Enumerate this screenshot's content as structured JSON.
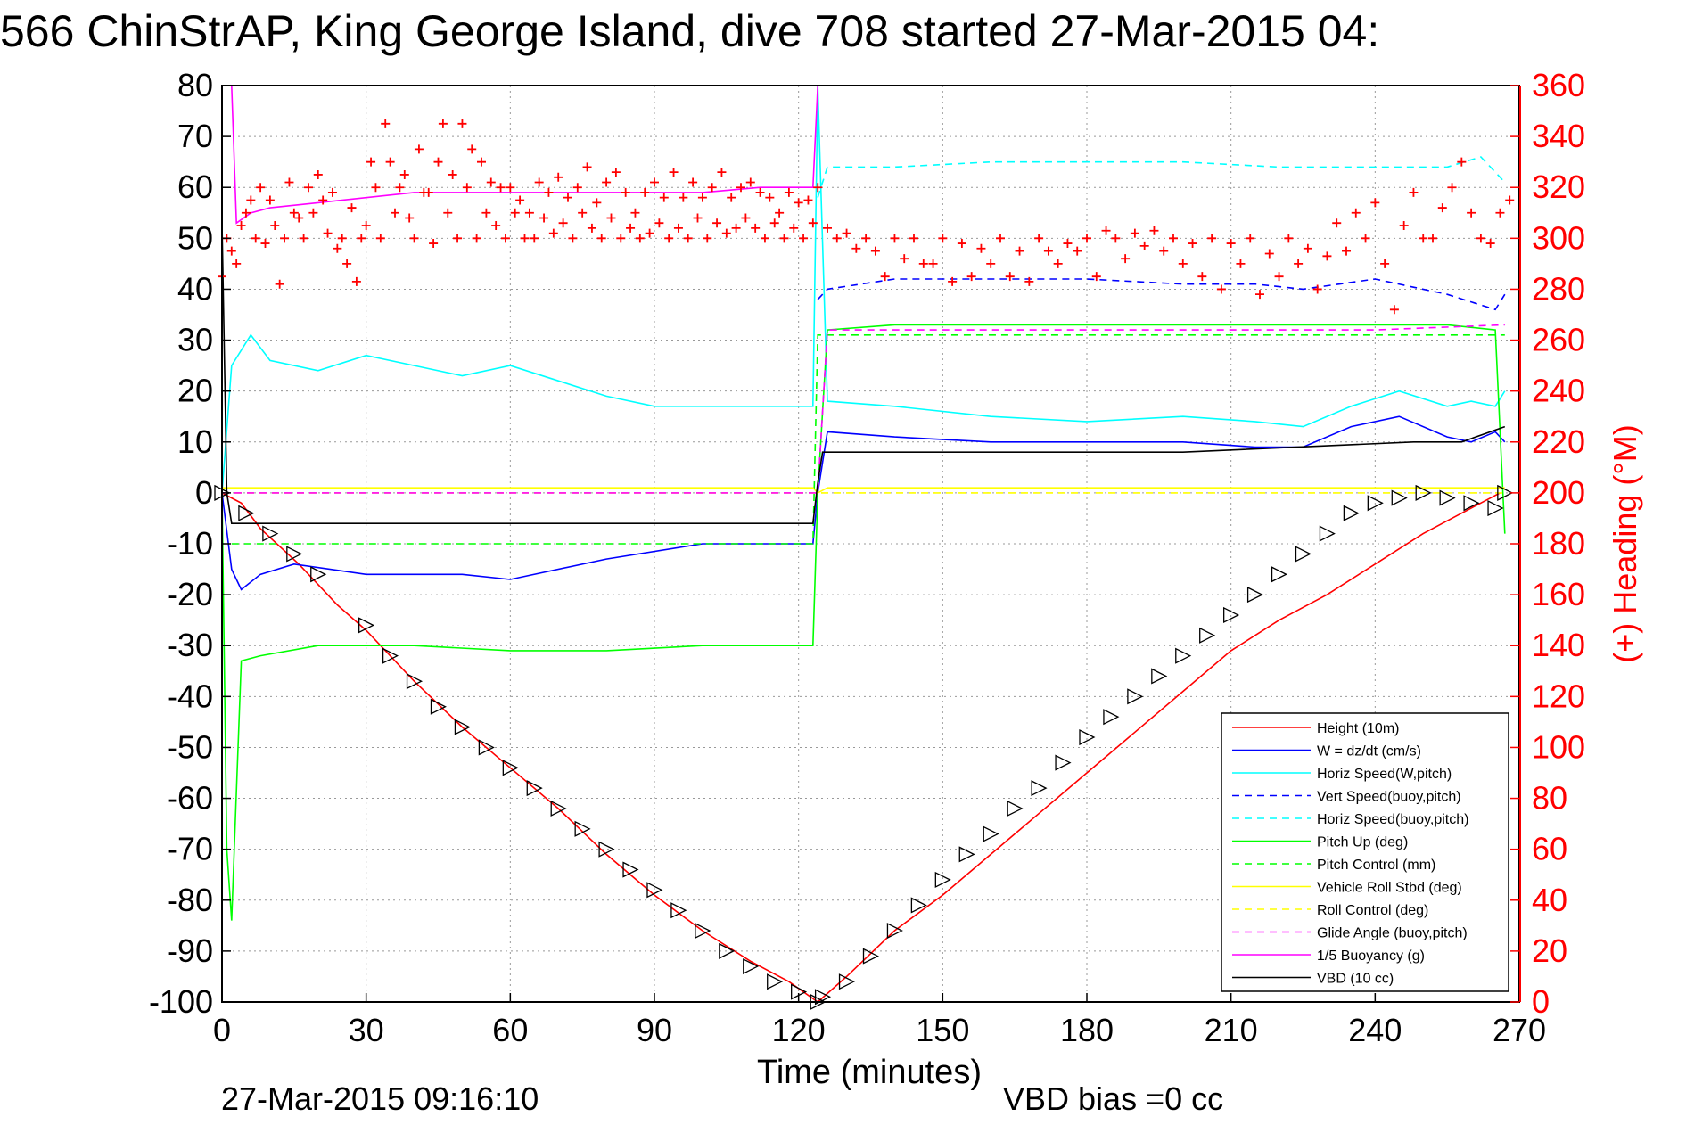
{
  "chart_data": {
    "type": "line",
    "title": "566 ChinStrAP, King George Island, dive 708 started 27-Mar-2015 04:",
    "xlabel": "Time (minutes)",
    "ylabel_right": "(+) Heading (°M)",
    "xlim": [
      0,
      270
    ],
    "ylim": [
      -100,
      80
    ],
    "ylim_right": [
      0,
      360
    ],
    "xticks": [
      "0",
      "30",
      "60",
      "90",
      "120",
      "150",
      "180",
      "210",
      "240",
      "270"
    ],
    "yticks": [
      "80",
      "70",
      "60",
      "50",
      "40",
      "30",
      "20",
      "10",
      "0",
      "-10",
      "-20",
      "-30",
      "-40",
      "-50",
      "-60",
      "-70",
      "-80",
      "-90",
      "-100"
    ],
    "yticks_right": [
      "360",
      "340",
      "320",
      "300",
      "280",
      "260",
      "240",
      "220",
      "200",
      "180",
      "160",
      "140",
      "120",
      "100",
      "80",
      "60",
      "40",
      "20",
      "0"
    ],
    "grid": true,
    "legend_position": "bottom-right",
    "footer_left": "27-Mar-2015 09:16:10",
    "footer_right": "VBD bias =0 cc",
    "colors": {
      "red": "#ff0000",
      "blue": "#0000ff",
      "cyan": "#00ffff",
      "green": "#00ff00",
      "yellow": "#ffff00",
      "magenta": "#ff00ff",
      "black": "#000000"
    },
    "series": [
      {
        "name": "Height (10m)",
        "color": "#ff0000",
        "style": "solid",
        "x": [
          0,
          4,
          8,
          16,
          24,
          30,
          40,
          50,
          60,
          70,
          80,
          90,
          100,
          110,
          118,
          124,
          130,
          140,
          150,
          160,
          170,
          180,
          190,
          200,
          210,
          220,
          230,
          240,
          250,
          258,
          266
        ],
        "y": [
          0,
          -2,
          -7,
          -14,
          -22,
          -27,
          -37,
          -46,
          -54,
          -62,
          -71,
          -79,
          -86,
          -92,
          -96,
          -100,
          -95,
          -86,
          -79,
          -71,
          -63,
          -55,
          -47,
          -39,
          -31,
          -25,
          -20,
          -14,
          -8,
          -4,
          0
        ]
      },
      {
        "name": "W = dz/dt (cm/s)",
        "color": "#0000ff",
        "style": "solid",
        "x": [
          0,
          2,
          4,
          8,
          15,
          30,
          50,
          60,
          80,
          100,
          123,
          124,
          126,
          140,
          160,
          180,
          200,
          215,
          225,
          235,
          245,
          255,
          260,
          265,
          267
        ],
        "y": [
          0,
          -15,
          -19,
          -16,
          -14,
          -16,
          -16,
          -17,
          -13,
          -10,
          -10,
          0,
          12,
          11,
          10,
          10,
          10,
          9,
          9,
          13,
          15,
          11,
          10,
          12,
          10
        ]
      },
      {
        "name": "Horiz Speed(W,pitch)",
        "color": "#00ffff",
        "style": "solid",
        "x": [
          0,
          2,
          6,
          10,
          20,
          30,
          40,
          50,
          60,
          70,
          80,
          90,
          100,
          110,
          123,
          124,
          126,
          140,
          160,
          180,
          200,
          215,
          225,
          235,
          245,
          255,
          260,
          265,
          267
        ],
        "y": [
          0,
          25,
          31,
          26,
          24,
          27,
          25,
          23,
          25,
          22,
          19,
          17,
          17,
          17,
          17,
          80,
          18,
          17,
          15,
          14,
          15,
          14,
          13,
          17,
          20,
          17,
          18,
          17,
          20
        ]
      },
      {
        "name": "Vert Speed(buoy,pitch)",
        "color": "#0000ff",
        "style": "dashed",
        "x": [
          124,
          126,
          140,
          160,
          180,
          200,
          215,
          225,
          240,
          255,
          265,
          267
        ],
        "y": [
          38,
          40,
          42,
          42,
          42,
          41,
          41,
          40,
          42,
          39,
          36,
          39
        ]
      },
      {
        "name": "Horiz Speed(buoy,pitch)",
        "color": "#00ffff",
        "style": "dashed",
        "x": [
          124,
          126,
          140,
          160,
          180,
          200,
          220,
          240,
          255,
          262,
          267
        ],
        "y": [
          58,
          64,
          64,
          65,
          65,
          65,
          64,
          64,
          64,
          66,
          61
        ]
      },
      {
        "name": "Pitch Up (deg)",
        "color": "#00ff00",
        "style": "solid",
        "x": [
          0,
          1,
          2,
          4,
          8,
          20,
          40,
          60,
          80,
          100,
          123,
          124,
          126,
          140,
          160,
          180,
          200,
          220,
          240,
          255,
          265,
          267
        ],
        "y": [
          0,
          -70,
          -84,
          -33,
          -32,
          -30,
          -30,
          -31,
          -31,
          -30,
          -30,
          0,
          32,
          33,
          33,
          33,
          33,
          33,
          33,
          33,
          32,
          -8
        ]
      },
      {
        "name": "Pitch Control (mm)",
        "color": "#00ff00",
        "style": "dashed",
        "x": [
          2,
          10,
          40,
          80,
          123,
          124,
          126,
          160,
          200,
          240,
          267
        ],
        "y": [
          -10,
          -10,
          -10,
          -10,
          -10,
          31,
          31,
          31,
          31,
          31,
          31
        ]
      },
      {
        "name": "Vehicle Roll Stbd (deg)",
        "color": "#ffff00",
        "style": "solid",
        "x": [
          0,
          10,
          30,
          60,
          90,
          123,
          124,
          126,
          150,
          180,
          210,
          240,
          255,
          267
        ],
        "y": [
          1,
          1,
          1,
          1,
          1,
          1,
          0,
          1,
          1,
          1,
          1,
          1,
          1,
          1
        ]
      },
      {
        "name": "Roll Control (deg)",
        "color": "#ffff00",
        "style": "dashed",
        "x": [
          0,
          10,
          30,
          60,
          90,
          123,
          126,
          150,
          180,
          210,
          240,
          255,
          267
        ],
        "y": [
          0,
          0,
          0,
          0,
          0,
          0,
          0,
          0,
          0,
          0,
          0,
          0,
          0
        ]
      },
      {
        "name": "Glide Angle (buoy,pitch)",
        "color": "#ff00ff",
        "style": "dashed",
        "x": [
          0,
          30,
          60,
          90,
          123,
          124,
          126,
          160,
          200,
          240,
          267
        ],
        "y": [
          0,
          0,
          0,
          0,
          0,
          0,
          32,
          32,
          32,
          32,
          33
        ]
      },
      {
        "name": "1/5 Buoyancy (g)",
        "color": "#ff00ff",
        "style": "solid",
        "x": [
          2,
          3,
          6,
          10,
          20,
          40,
          60,
          80,
          100,
          112,
          123,
          124
        ],
        "y": [
          80,
          53,
          55,
          56,
          57,
          59,
          59,
          59,
          59,
          60,
          60,
          80
        ]
      },
      {
        "name": "VBD (10 cc)",
        "color": "#000000",
        "style": "solid",
        "x": [
          0,
          1,
          2,
          3,
          60,
          123,
          124,
          125,
          126,
          200,
          248,
          258,
          267
        ],
        "y": [
          53,
          0,
          -6,
          -6,
          -6,
          -6,
          2,
          8,
          8,
          8,
          10,
          10,
          13
        ]
      }
    ],
    "heading_series": {
      "name": "(+) Heading",
      "color": "#ff0000",
      "marker": "+",
      "axis": "right",
      "x": [
        0,
        1,
        2,
        3,
        4,
        5,
        6,
        7,
        8,
        9,
        10,
        11,
        12,
        13,
        14,
        15,
        16,
        17,
        18,
        19,
        20,
        21,
        22,
        23,
        24,
        25,
        26,
        27,
        28,
        29,
        30,
        31,
        32,
        33,
        34,
        35,
        36,
        37,
        38,
        39,
        40,
        41,
        42,
        43,
        44,
        45,
        46,
        47,
        48,
        49,
        50,
        51,
        52,
        53,
        54,
        55,
        56,
        57,
        58,
        59,
        60,
        61,
        62,
        63,
        64,
        65,
        66,
        67,
        68,
        69,
        70,
        71,
        72,
        73,
        74,
        75,
        76,
        77,
        78,
        79,
        80,
        81,
        82,
        83,
        84,
        85,
        86,
        87,
        88,
        89,
        90,
        91,
        92,
        93,
        94,
        95,
        96,
        97,
        98,
        99,
        100,
        101,
        102,
        103,
        104,
        105,
        106,
        107,
        108,
        109,
        110,
        111,
        112,
        113,
        114,
        115,
        116,
        117,
        118,
        119,
        120,
        121,
        122,
        123,
        124,
        126,
        128,
        130,
        132,
        134,
        136,
        138,
        140,
        142,
        144,
        146,
        148,
        150,
        152,
        154,
        156,
        158,
        160,
        162,
        164,
        166,
        168,
        170,
        172,
        174,
        176,
        178,
        180,
        182,
        184,
        186,
        188,
        190,
        192,
        194,
        196,
        198,
        200,
        202,
        204,
        206,
        208,
        210,
        212,
        214,
        216,
        218,
        220,
        222,
        224,
        226,
        228,
        230,
        232,
        234,
        236,
        238,
        240,
        242,
        244,
        246,
        248,
        250,
        252,
        254,
        256,
        258,
        260,
        262,
        264,
        266,
        268
      ],
      "y": [
        285,
        300,
        295,
        290,
        305,
        310,
        315,
        300,
        320,
        298,
        315,
        305,
        282,
        300,
        322,
        310,
        308,
        300,
        320,
        310,
        325,
        315,
        302,
        318,
        296,
        300,
        290,
        312,
        283,
        300,
        305,
        330,
        320,
        300,
        345,
        330,
        310,
        320,
        325,
        308,
        300,
        335,
        318,
        318,
        298,
        330,
        345,
        310,
        325,
        300,
        345,
        320,
        335,
        300,
        330,
        310,
        322,
        305,
        320,
        300,
        320,
        310,
        315,
        300,
        310,
        300,
        322,
        308,
        318,
        302,
        324,
        306,
        316,
        300,
        320,
        310,
        328,
        304,
        314,
        300,
        322,
        308,
        326,
        300,
        318,
        304,
        310,
        300,
        318,
        302,
        322,
        306,
        316,
        300,
        326,
        304,
        316,
        300,
        322,
        308,
        316,
        300,
        320,
        306,
        326,
        302,
        316,
        304,
        320,
        308,
        322,
        304,
        318,
        300,
        316,
        306,
        310,
        300,
        318,
        304,
        314,
        300,
        315,
        306,
        320,
        304,
        300,
        302,
        296,
        300,
        295,
        285,
        300,
        292,
        300,
        290,
        290,
        300,
        283,
        298,
        285,
        296,
        290,
        300,
        285,
        295,
        283,
        300,
        295,
        290,
        298,
        295,
        300,
        285,
        303,
        300,
        292,
        302,
        297,
        303,
        295,
        300,
        290,
        298,
        285,
        300,
        280,
        298,
        290,
        300,
        278,
        294,
        285,
        300,
        290,
        296,
        280,
        293,
        306,
        295,
        310,
        300,
        314,
        290,
        272,
        305,
        318,
        300,
        300,
        312,
        320,
        330,
        310,
        300,
        298,
        310,
        315
      ]
    },
    "markers_triangles": {
      "color": "#000000",
      "x": [
        0,
        5,
        10,
        15,
        20,
        30,
        35,
        40,
        45,
        50,
        55,
        60,
        65,
        70,
        75,
        80,
        85,
        90,
        95,
        100,
        105,
        110,
        115,
        120,
        124,
        125,
        130,
        135,
        140,
        145,
        150,
        155,
        160,
        165,
        170,
        175,
        180,
        185,
        190,
        195,
        200,
        205,
        210,
        215,
        220,
        225,
        230,
        235,
        240,
        245,
        250,
        255,
        260,
        265,
        267
      ],
      "y": [
        0,
        -4,
        -8,
        -12,
        -16,
        -26,
        -32,
        -37,
        -42,
        -46,
        -50,
        -54,
        -58,
        -62,
        -66,
        -70,
        -74,
        -78,
        -82,
        -86,
        -90,
        -93,
        -96,
        -98,
        -100,
        -99,
        -96,
        -91,
        -86,
        -81,
        -76,
        -71,
        -67,
        -62,
        -58,
        -53,
        -48,
        -44,
        -40,
        -36,
        -32,
        -28,
        -24,
        -20,
        -16,
        -12,
        -8,
        -4,
        -2,
        -1,
        0,
        -1,
        -2,
        -3,
        0
      ]
    }
  }
}
